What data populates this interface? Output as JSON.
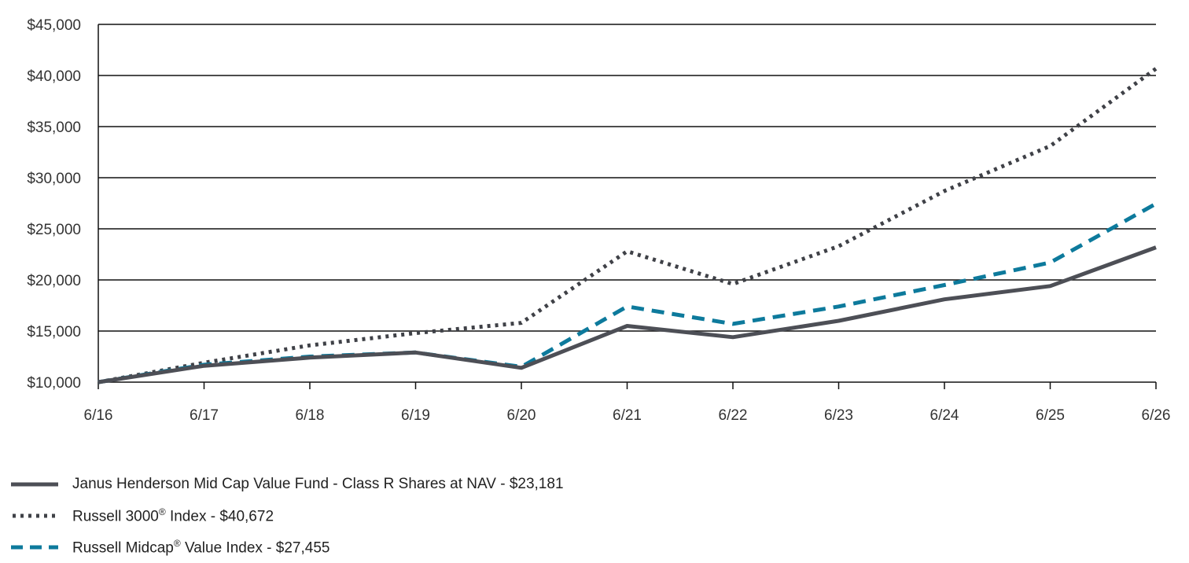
{
  "chart_data": {
    "type": "line",
    "x": [
      "6/16",
      "6/17",
      "6/18",
      "6/19",
      "6/20",
      "6/21",
      "6/22",
      "6/23",
      "6/24",
      "6/25",
      "6/26"
    ],
    "ylim": [
      10000,
      45000
    ],
    "y_ticks": [
      "$10,000",
      "$15,000",
      "$20,000",
      "$25,000",
      "$30,000",
      "$35,000",
      "$40,000",
      "$45,000"
    ],
    "grid": "horizontal",
    "legend_position": "bottom-left",
    "series": [
      {
        "name": "Janus Henderson Mid Cap Value Fund - Class R Shares at NAV - $23,181",
        "style": "solid",
        "color": "#4d4f56",
        "values": [
          10000,
          11600,
          12400,
          12900,
          11400,
          15500,
          14400,
          16000,
          18100,
          19400,
          23181
        ]
      },
      {
        "name": "Russell 3000® Index - $40,672",
        "label_parts": [
          "Russell 3000",
          "®",
          " Index - $40,672"
        ],
        "style": "dotted",
        "color": "#3f4147",
        "values": [
          10000,
          11900,
          13600,
          14800,
          15800,
          22800,
          19600,
          23300,
          28700,
          33100,
          40672
        ]
      },
      {
        "name": "Russell Midcap® Value Index - $27,455",
        "label_parts": [
          "Russell Midcap",
          "®",
          " Value Index - $27,455"
        ],
        "style": "dashed",
        "color": "#0d7a9c",
        "values": [
          10000,
          11700,
          12500,
          12900,
          11500,
          17400,
          15700,
          17400,
          19500,
          21700,
          27455
        ]
      }
    ]
  }
}
